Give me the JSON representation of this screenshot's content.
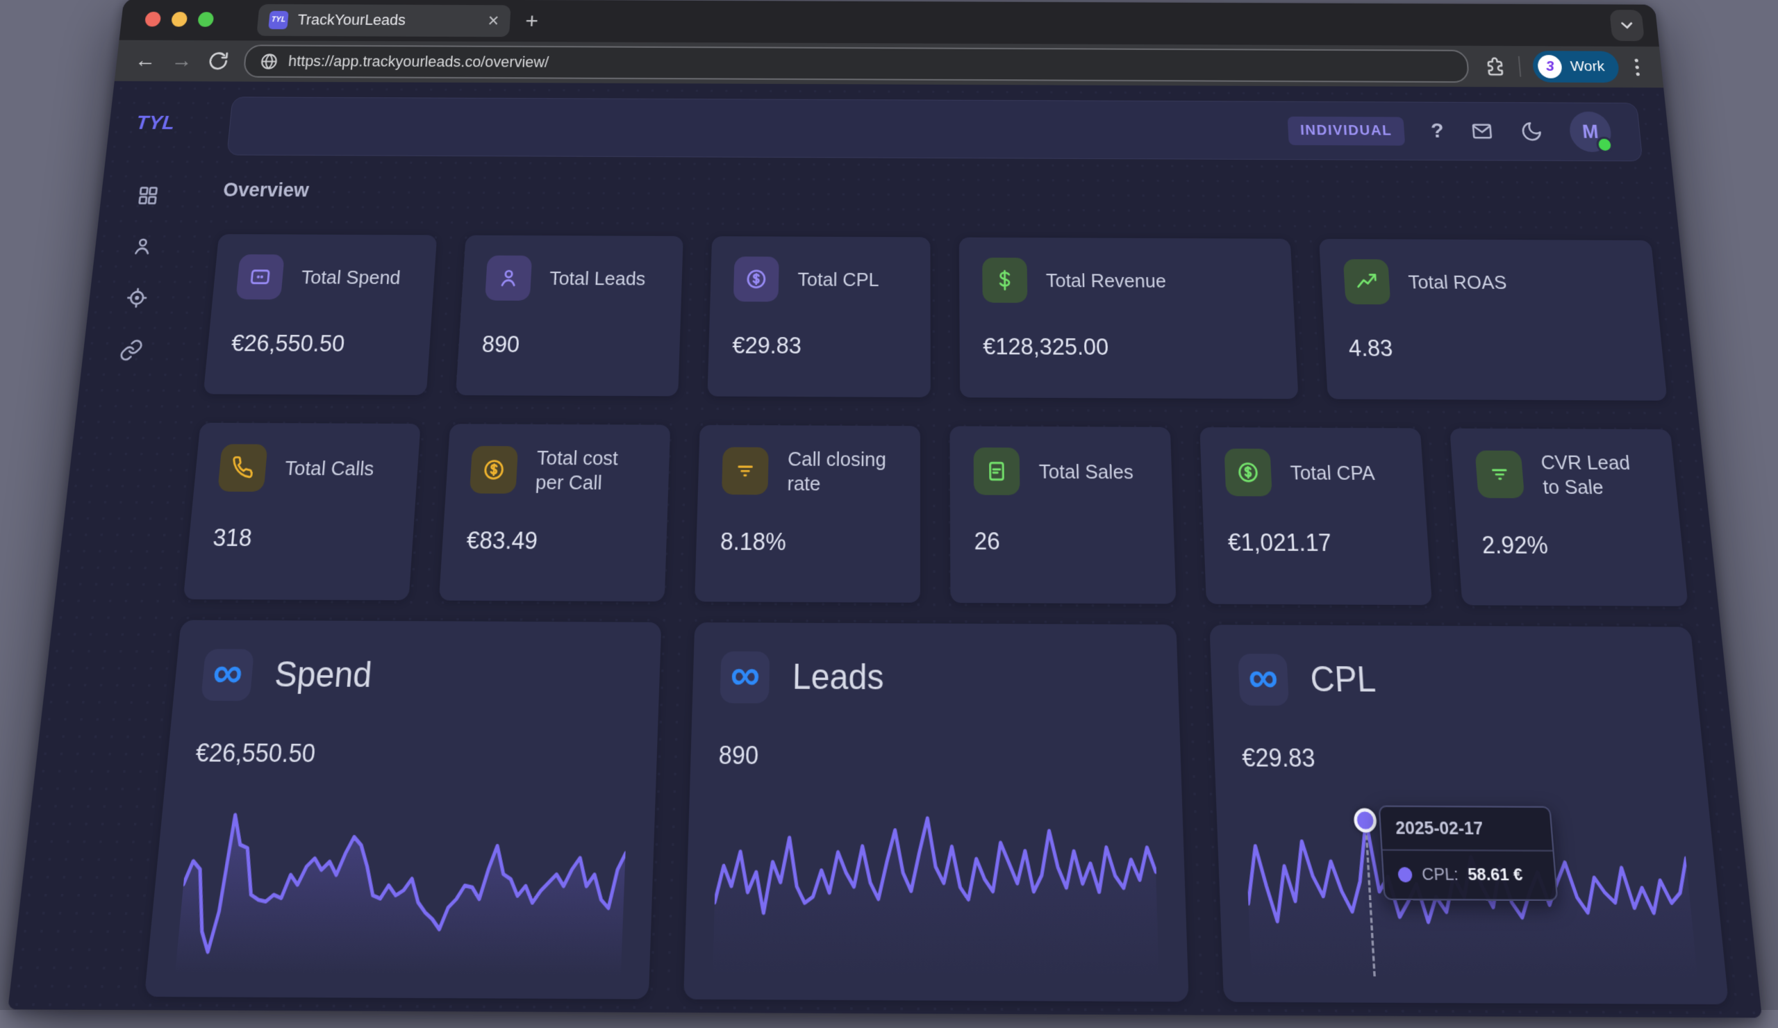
{
  "browser": {
    "tab_title": "TrackYourLeads",
    "favicon_text": "TYL",
    "close_tab_label": "×",
    "new_tab_label": "+",
    "url": "https://app.trackyourleads.co/overview/",
    "profile": {
      "name": "Work",
      "avatar_glyph": "3"
    }
  },
  "sidebar": {
    "logo": "TYL",
    "items": [
      {
        "icon": "grid-icon"
      },
      {
        "icon": "user-icon"
      },
      {
        "icon": "locate-icon"
      },
      {
        "icon": "link-icon"
      }
    ]
  },
  "header": {
    "plan_badge": "INDIVIDUAL",
    "help_label": "?",
    "avatar_initial": "M"
  },
  "overview": {
    "section_title": "Overview"
  },
  "stats_row1": [
    {
      "label": "Total Spend",
      "value": "€26,550.50",
      "icon": "credit-card",
      "tone": "purple"
    },
    {
      "label": "Total Leads",
      "value": "890",
      "icon": "user",
      "tone": "purple"
    },
    {
      "label": "Total CPL",
      "value": "€29.83",
      "icon": "coin",
      "tone": "purple"
    },
    {
      "label": "Total Revenue",
      "value": "€128,325.00",
      "icon": "dollar",
      "tone": "green"
    },
    {
      "label": "Total ROAS",
      "value": "4.83",
      "icon": "trending-up",
      "tone": "green"
    }
  ],
  "stats_row2": [
    {
      "label": "Total Calls",
      "value": "318",
      "icon": "phone",
      "tone": "yellow"
    },
    {
      "label": "Total cost per Call",
      "value": "€83.49",
      "icon": "coin",
      "tone": "yellow"
    },
    {
      "label": "Call closing rate",
      "value": "8.18%",
      "icon": "filter",
      "tone": "yellow"
    },
    {
      "label": "Total Sales",
      "value": "26",
      "icon": "pos-card",
      "tone": "green"
    },
    {
      "label": "Total CPA",
      "value": "€1,021.17",
      "icon": "coin",
      "tone": "green"
    },
    {
      "label": "CVR Lead to Sale",
      "value": "2.92%",
      "icon": "filter",
      "tone": "green"
    }
  ],
  "chart_data": [
    {
      "type": "line",
      "source": "Meta",
      "title": "Spend",
      "total": "€26,550.50",
      "unit": "€",
      "line_color": "#7c6df2",
      "area_fill": true,
      "x_axis": "daily (hidden)",
      "grid": false,
      "legend": false,
      "values": [
        46,
        60,
        55,
        18,
        6,
        30,
        88,
        70,
        68,
        40,
        37,
        36,
        40,
        38,
        52,
        46,
        57,
        62,
        55,
        60,
        52,
        65,
        75,
        70,
        57,
        40,
        38,
        46,
        40,
        43,
        50,
        36,
        30,
        26,
        20,
        33,
        38,
        46,
        45,
        38,
        56,
        70,
        53,
        50,
        40,
        46,
        36,
        43,
        48,
        53,
        46,
        56,
        63,
        46,
        53,
        38,
        33,
        56,
        66
      ]
    },
    {
      "type": "line",
      "source": "Meta",
      "title": "Leads",
      "total": "890",
      "unit": "",
      "line_color": "#7c6df2",
      "area_fill": false,
      "x_axis": "daily (hidden)",
      "grid": false,
      "legend": false,
      "values": [
        30,
        48,
        38,
        55,
        35,
        45,
        25,
        50,
        40,
        62,
        38,
        30,
        33,
        46,
        35,
        55,
        45,
        38,
        58,
        40,
        32,
        50,
        66,
        45,
        36,
        55,
        72,
        48,
        40,
        58,
        38,
        32,
        52,
        42,
        36,
        60,
        50,
        40,
        56,
        36,
        44,
        66,
        48,
        38,
        56,
        40,
        50,
        36,
        58,
        44,
        38,
        52,
        42,
        58,
        46
      ]
    },
    {
      "type": "line",
      "source": "Meta",
      "title": "CPL",
      "total": "€29.83",
      "unit": "€",
      "line_color": "#7c6df2",
      "area_fill": false,
      "x_axis": "daily (hidden)",
      "grid": false,
      "legend": false,
      "values": [
        25,
        48,
        32,
        18,
        40,
        26,
        50,
        36,
        28,
        42,
        30,
        22,
        34,
        58.61,
        30,
        36,
        20,
        26,
        33,
        18,
        28,
        22,
        36,
        28,
        44,
        32,
        24,
        40,
        26,
        20,
        30,
        38,
        25,
        34,
        42,
        28,
        22,
        36,
        30,
        26,
        40,
        24,
        32,
        22,
        35,
        26,
        30,
        44
      ],
      "marker": {
        "index": 13,
        "date": "2025-02-17",
        "label": "CPL:",
        "value": "58.61 €"
      }
    }
  ],
  "colors": {
    "accent_purple": "#7c6df2",
    "accent_green": "#74e36c",
    "accent_yellow": "#f0b42e",
    "meta_blue": "#2e89f8",
    "page_bg": "#212238",
    "card_bg": "#2c2e4b",
    "profile_pill_bg": "#0d5280"
  }
}
